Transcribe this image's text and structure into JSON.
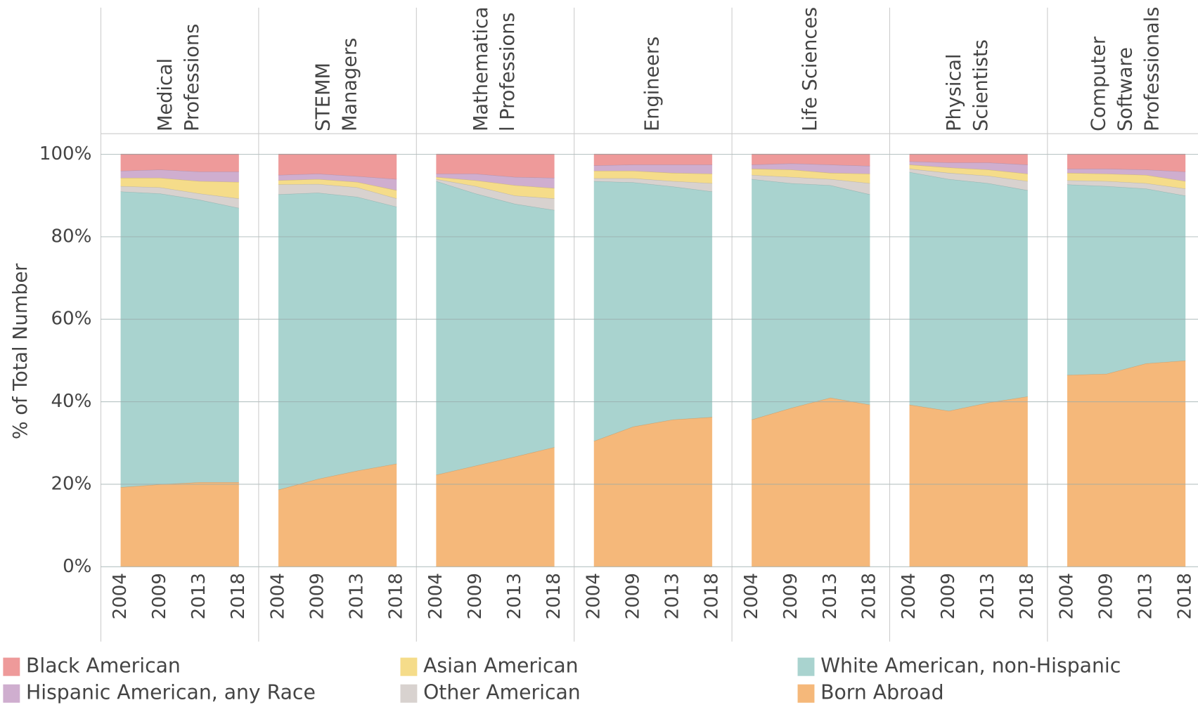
{
  "chart_data": [
    {
      "type": "area",
      "title": [
        "Medical",
        "Professions"
      ],
      "ylabel": "% of Total Number",
      "categories": [
        "2004",
        "2009",
        "2013",
        "2018"
      ],
      "ylim": [
        0,
        100
      ],
      "yticks": [
        {
          "value": 0,
          "label": "0%"
        },
        {
          "value": 20,
          "label": "20%"
        },
        {
          "value": 40,
          "label": "40%"
        },
        {
          "value": 60,
          "label": "60%"
        },
        {
          "value": 80,
          "label": "80%"
        },
        {
          "value": 100,
          "label": "100%"
        }
      ],
      "grid": true,
      "series": [
        {
          "name": "Born Abroad",
          "color": "#f5b87a",
          "values": [
            19.3,
            20,
            20.5,
            20.5
          ]
        },
        {
          "name": "White American, non-Hispanic",
          "color": "#a9d3cf",
          "values": [
            71.7,
            70.5,
            68.5,
            66.5
          ]
        },
        {
          "name": "Other American",
          "color": "#d8d2cf",
          "values": [
            1.3,
            1.5,
            1.5,
            2.3
          ]
        },
        {
          "name": "Asian American",
          "color": "#f5dc8a",
          "values": [
            2,
            2.3,
            3,
            4
          ]
        },
        {
          "name": "Hispanic American, any Race",
          "color": "#cfaecf",
          "values": [
            1.7,
            2,
            2.3,
            2.5
          ]
        },
        {
          "name": "Black American",
          "color": "#ee9a9a",
          "values": [
            4,
            3.7,
            4.2,
            4.2
          ]
        }
      ]
    },
    {
      "type": "area",
      "title": [
        "STEMM",
        "Managers"
      ],
      "categories": [
        "2004",
        "2009",
        "2013",
        "2018"
      ],
      "ylim": [
        0,
        100
      ],
      "yticks": [
        0,
        20,
        40,
        60,
        80,
        100
      ],
      "grid": true,
      "series": [
        {
          "color": "#f5b87a",
          "values": [
            18.7,
            21.3,
            23.3,
            25
          ]
        },
        {
          "color": "#a9d3cf",
          "values": [
            71.6,
            69.4,
            66.4,
            62.3
          ]
        },
        {
          "color": "#d8d2cf",
          "values": [
            2.4,
            2.1,
            2.3,
            2
          ]
        },
        {
          "color": "#f5dc8a",
          "values": [
            1,
            1.2,
            1.3,
            2
          ]
        },
        {
          "color": "#cfaecf",
          "values": [
            1.3,
            1.3,
            1.4,
            2.7
          ]
        },
        {
          "color": "#ee9a9a",
          "values": [
            5,
            4.7,
            5.3,
            6
          ]
        }
      ]
    },
    {
      "type": "area",
      "title": [
        "Mathematica",
        "l Professions"
      ],
      "categories": [
        "2004",
        "2009",
        "2013",
        "2018"
      ],
      "ylim": [
        0,
        100
      ],
      "yticks": [
        0,
        20,
        40,
        60,
        80,
        100
      ],
      "grid": true,
      "series": [
        {
          "color": "#f5b87a",
          "values": [
            22.3,
            24.5,
            26.7,
            29
          ]
        },
        {
          "color": "#a9d3cf",
          "values": [
            71.2,
            66,
            61.3,
            57.5
          ]
        },
        {
          "color": "#d8d2cf",
          "values": [
            0.5,
            1.8,
            2,
            2.8
          ]
        },
        {
          "color": "#f5dc8a",
          "values": [
            0.5,
            1.4,
            2.5,
            2.5
          ]
        },
        {
          "color": "#cfaecf",
          "values": [
            0.8,
            1.6,
            2,
            2.5
          ]
        },
        {
          "color": "#ee9a9a",
          "values": [
            4.7,
            4.7,
            5.5,
            5.7
          ]
        }
      ]
    },
    {
      "type": "area",
      "title": [
        "Engineers"
      ],
      "categories": [
        "2004",
        "2009",
        "2013",
        "2018"
      ],
      "ylim": [
        0,
        100
      ],
      "yticks": [
        0,
        20,
        40,
        60,
        80,
        100
      ],
      "grid": true,
      "series": [
        {
          "color": "#f5b87a",
          "values": [
            30.5,
            34,
            35.7,
            36.3
          ]
        },
        {
          "color": "#a9d3cf",
          "values": [
            63,
            59.2,
            56.5,
            54.7
          ]
        },
        {
          "color": "#d8d2cf",
          "values": [
            0.7,
            1,
            1.3,
            2
          ]
        },
        {
          "color": "#f5dc8a",
          "values": [
            1.8,
            1.8,
            2,
            2.3
          ]
        },
        {
          "color": "#cfaecf",
          "values": [
            1.3,
            1.5,
            2,
            2.2
          ]
        },
        {
          "color": "#ee9a9a",
          "values": [
            2.7,
            2.5,
            2.5,
            2.5
          ]
        }
      ]
    },
    {
      "type": "area",
      "title": [
        "Life Sciences"
      ],
      "categories": [
        "2004",
        "2009",
        "2013",
        "2018"
      ],
      "ylim": [
        0,
        100
      ],
      "yticks": [
        0,
        20,
        40,
        60,
        80,
        100
      ],
      "grid": true,
      "series": [
        {
          "color": "#f5b87a",
          "values": [
            35.7,
            38.5,
            41,
            39.3
          ]
        },
        {
          "color": "#a9d3cf",
          "values": [
            58.3,
            54.5,
            51.5,
            51
          ]
        },
        {
          "color": "#d8d2cf",
          "values": [
            1,
            1.5,
            1.5,
            2.7
          ]
        },
        {
          "color": "#f5dc8a",
          "values": [
            1.5,
            1.8,
            1.5,
            2.3
          ]
        },
        {
          "color": "#cfaecf",
          "values": [
            1,
            1.5,
            2,
            1.9
          ]
        },
        {
          "color": "#ee9a9a",
          "values": [
            2.5,
            2.2,
            2.5,
            2.8
          ]
        }
      ]
    },
    {
      "type": "area",
      "title": [
        "Physical",
        "Scientists"
      ],
      "categories": [
        "2004",
        "2009",
        "2013",
        "2018"
      ],
      "ylim": [
        0,
        100
      ],
      "yticks": [
        0,
        20,
        40,
        60,
        80,
        100
      ],
      "grid": true,
      "series": [
        {
          "color": "#f5b87a",
          "values": [
            39.3,
            37.8,
            39.8,
            41.3
          ]
        },
        {
          "color": "#a9d3cf",
          "values": [
            56.4,
            56.2,
            53.2,
            50
          ]
        },
        {
          "color": "#d8d2cf",
          "values": [
            0.8,
            1.5,
            1.8,
            2.2
          ]
        },
        {
          "color": "#f5dc8a",
          "values": [
            1,
            1.3,
            1.5,
            1.8
          ]
        },
        {
          "color": "#cfaecf",
          "values": [
            0.8,
            1.2,
            1.7,
            2.2
          ]
        },
        {
          "color": "#ee9a9a",
          "values": [
            1.7,
            2,
            2,
            2.5
          ]
        }
      ]
    },
    {
      "type": "area",
      "title": [
        "Computer",
        "Software",
        "Professionals"
      ],
      "categories": [
        "2004",
        "2009",
        "2013",
        "2018"
      ],
      "ylim": [
        0,
        100
      ],
      "yticks": [
        0,
        20,
        40,
        60,
        80,
        100
      ],
      "grid": true,
      "series": [
        {
          "color": "#f5b87a",
          "values": [
            46.5,
            46.8,
            49.3,
            50
          ]
        },
        {
          "color": "#a9d3cf",
          "values": [
            46.2,
            45.5,
            42.4,
            40
          ]
        },
        {
          "color": "#d8d2cf",
          "values": [
            1,
            1.2,
            1.3,
            1.7
          ]
        },
        {
          "color": "#f5dc8a",
          "values": [
            1.8,
            1.8,
            2,
            1.8
          ]
        },
        {
          "color": "#cfaecf",
          "values": [
            1,
            1.2,
            1.3,
            2.3
          ]
        },
        {
          "color": "#ee9a9a",
          "values": [
            3.5,
            3.5,
            3.7,
            4.2
          ]
        }
      ]
    }
  ]
}
